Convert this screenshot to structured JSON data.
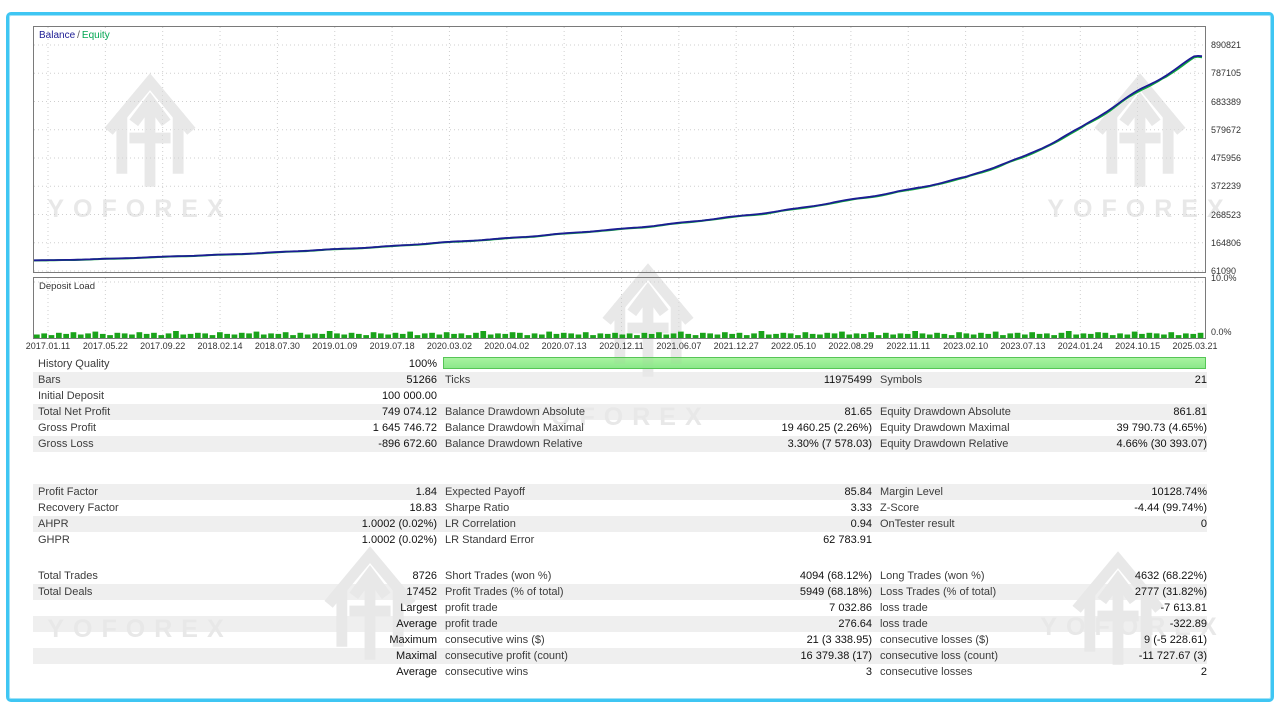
{
  "branding": {
    "watermark_text": "YOFOREX"
  },
  "chart": {
    "legend": {
      "balance": "Balance",
      "separator": "/",
      "equity": "Equity"
    },
    "deposit_label": "Deposit Load",
    "colors": {
      "balance_line": "#1c1c94",
      "equity_line": "#0faa3c",
      "deposit_bar": "#1aa31a",
      "grid": "#cfcfcf",
      "panel_border": "#7a7a7a",
      "frame": "#3fc6f3",
      "history_bar": "#8ce98a",
      "row_shade": "#efefef"
    }
  },
  "chart_data": {
    "type": "line",
    "title": "Balance / Equity",
    "legend_position": "top-left",
    "grid": "dotted",
    "x_ticks": [
      "2017.01.11",
      "2017.05.22",
      "2017.09.22",
      "2018.02.14",
      "2018.07.30",
      "2019.01.09",
      "2019.07.18",
      "2020.03.02",
      "2020.04.02",
      "2020.07.13",
      "2020.12.11",
      "2021.06.07",
      "2021.12.27",
      "2022.05.10",
      "2022.08.29",
      "2022.11.11",
      "2023.02.10",
      "2023.07.13",
      "2024.01.24",
      "2024.10.15",
      "2025.03.21"
    ],
    "y_ticks": [
      890821,
      787105,
      683389,
      579672,
      475956,
      372239,
      268523,
      164806,
      61090
    ],
    "ylim": [
      61090,
      890821
    ],
    "series": [
      {
        "name": "Balance",
        "color": "#1c1c94",
        "values_at_ticks": [
          100000,
          106000,
          113000,
          121000,
          130000,
          141000,
          153000,
          167000,
          182000,
          198000,
          216000,
          237000,
          261000,
          289000,
          322000,
          360000,
          404000,
          480000,
          585000,
          720000,
          849074
        ]
      },
      {
        "name": "Equity",
        "color": "#0faa3c",
        "values_at_ticks": [
          100000,
          106000,
          113000,
          121000,
          130000,
          141000,
          153000,
          167000,
          182000,
          198000,
          216000,
          237000,
          261000,
          289000,
          322000,
          360000,
          404000,
          480000,
          585000,
          720000,
          849074
        ]
      }
    ],
    "secondary_panel": {
      "title": "Deposit Load",
      "type": "bar",
      "y_ticks_labels": [
        "10.0%",
        "0.0%"
      ],
      "ylim_percent": [
        0,
        10
      ],
      "values_percent": [
        0.6,
        0.8,
        0.5,
        0.9,
        0.7,
        1.0,
        0.6,
        0.8,
        1.1,
        0.7,
        0.5,
        0.9,
        0.8,
        0.6,
        1.0,
        0.7,
        0.9,
        0.5,
        0.8,
        1.2,
        0.6,
        0.7,
        0.9,
        0.8,
        0.5,
        1.0,
        0.7,
        0.6,
        0.9,
        0.8,
        1.1,
        0.6,
        0.8,
        0.7,
        1.0,
        0.5,
        0.9,
        0.6,
        0.8,
        0.7,
        1.2,
        0.8,
        0.6,
        0.9,
        0.7,
        0.5,
        1.0,
        0.8,
        0.6,
        0.9,
        0.7,
        1.1,
        0.5,
        0.8,
        0.9,
        0.6,
        1.0,
        0.7,
        0.8,
        0.5,
        0.9,
        1.2,
        0.6,
        0.8,
        0.7,
        1.0,
        0.9,
        0.5,
        0.8,
        0.6,
        1.1,
        0.7,
        0.9,
        0.8,
        0.6,
        1.0,
        0.5,
        0.8,
        0.7,
        0.9
      ]
    }
  },
  "stats": {
    "sections": [
      {
        "rows": [
          {
            "cells": [
              "History Quality",
              "100%",
              "",
              "",
              "",
              ""
            ],
            "shaded": false,
            "history_bar": true
          },
          {
            "cells": [
              "Bars",
              "51266",
              "Ticks",
              "11975499",
              "Symbols",
              "21"
            ],
            "shaded": true
          },
          {
            "cells": [
              "Initial Deposit",
              "100 000.00",
              "",
              "",
              "",
              ""
            ],
            "shaded": false
          },
          {
            "cells": [
              "Total Net Profit",
              "749 074.12",
              "Balance Drawdown Absolute",
              "81.65",
              "Equity Drawdown Absolute",
              "861.81"
            ],
            "shaded": true
          },
          {
            "cells": [
              "Gross Profit",
              "1 645 746.72",
              "Balance Drawdown Maximal",
              "19 460.25 (2.26%)",
              "Equity Drawdown Maximal",
              "39 790.73 (4.65%)"
            ],
            "shaded": false
          },
          {
            "cells": [
              "Gross Loss",
              "-896 672.60",
              "Balance Drawdown Relative",
              "3.30% (7 578.03)",
              "Equity Drawdown Relative",
              "4.66% (30 393.07)"
            ],
            "shaded": true
          }
        ]
      },
      {
        "rows": [
          {
            "cells": [
              "Profit Factor",
              "1.84",
              "Expected Payoff",
              "85.84",
              "Margin Level",
              "10128.74%"
            ],
            "shaded": true
          },
          {
            "cells": [
              "Recovery Factor",
              "18.83",
              "Sharpe Ratio",
              "3.33",
              "Z-Score",
              "-4.44 (99.74%)"
            ],
            "shaded": false
          },
          {
            "cells": [
              "AHPR",
              "1.0002 (0.02%)",
              "LR Correlation",
              "0.94",
              "OnTester result",
              "0"
            ],
            "shaded": true
          },
          {
            "cells": [
              "GHPR",
              "1.0002 (0.02%)",
              "LR Standard Error",
              "62 783.91",
              "",
              ""
            ],
            "shaded": false
          }
        ]
      },
      {
        "rows": [
          {
            "cells": [
              "Total Trades",
              "8726",
              "Short Trades (won %)",
              "4094 (68.12%)",
              "Long Trades (won %)",
              "4632 (68.22%)"
            ],
            "shaded": false
          },
          {
            "cells": [
              "Total Deals",
              "17452",
              "Profit Trades (% of total)",
              "5949 (68.18%)",
              "Loss Trades (% of total)",
              "2777 (31.82%)"
            ],
            "shaded": true
          },
          {
            "cells": [
              "",
              "Largest",
              "profit trade",
              "7 032.86",
              "loss trade",
              "-7 613.81"
            ],
            "shaded": false
          },
          {
            "cells": [
              "",
              "Average",
              "profit trade",
              "276.64",
              "loss trade",
              "-322.89"
            ],
            "shaded": true
          },
          {
            "cells": [
              "",
              "Maximum",
              "consecutive wins ($)",
              "21 (3 338.95)",
              "consecutive losses ($)",
              "9 (-5 228.61)"
            ],
            "shaded": false
          },
          {
            "cells": [
              "",
              "Maximal",
              "consecutive profit (count)",
              "16 379.38 (17)",
              "consecutive loss (count)",
              "-11 727.67 (3)"
            ],
            "shaded": true
          },
          {
            "cells": [
              "",
              "Average",
              "consecutive wins",
              "3",
              "consecutive losses",
              "2"
            ],
            "shaded": false
          }
        ]
      }
    ]
  }
}
